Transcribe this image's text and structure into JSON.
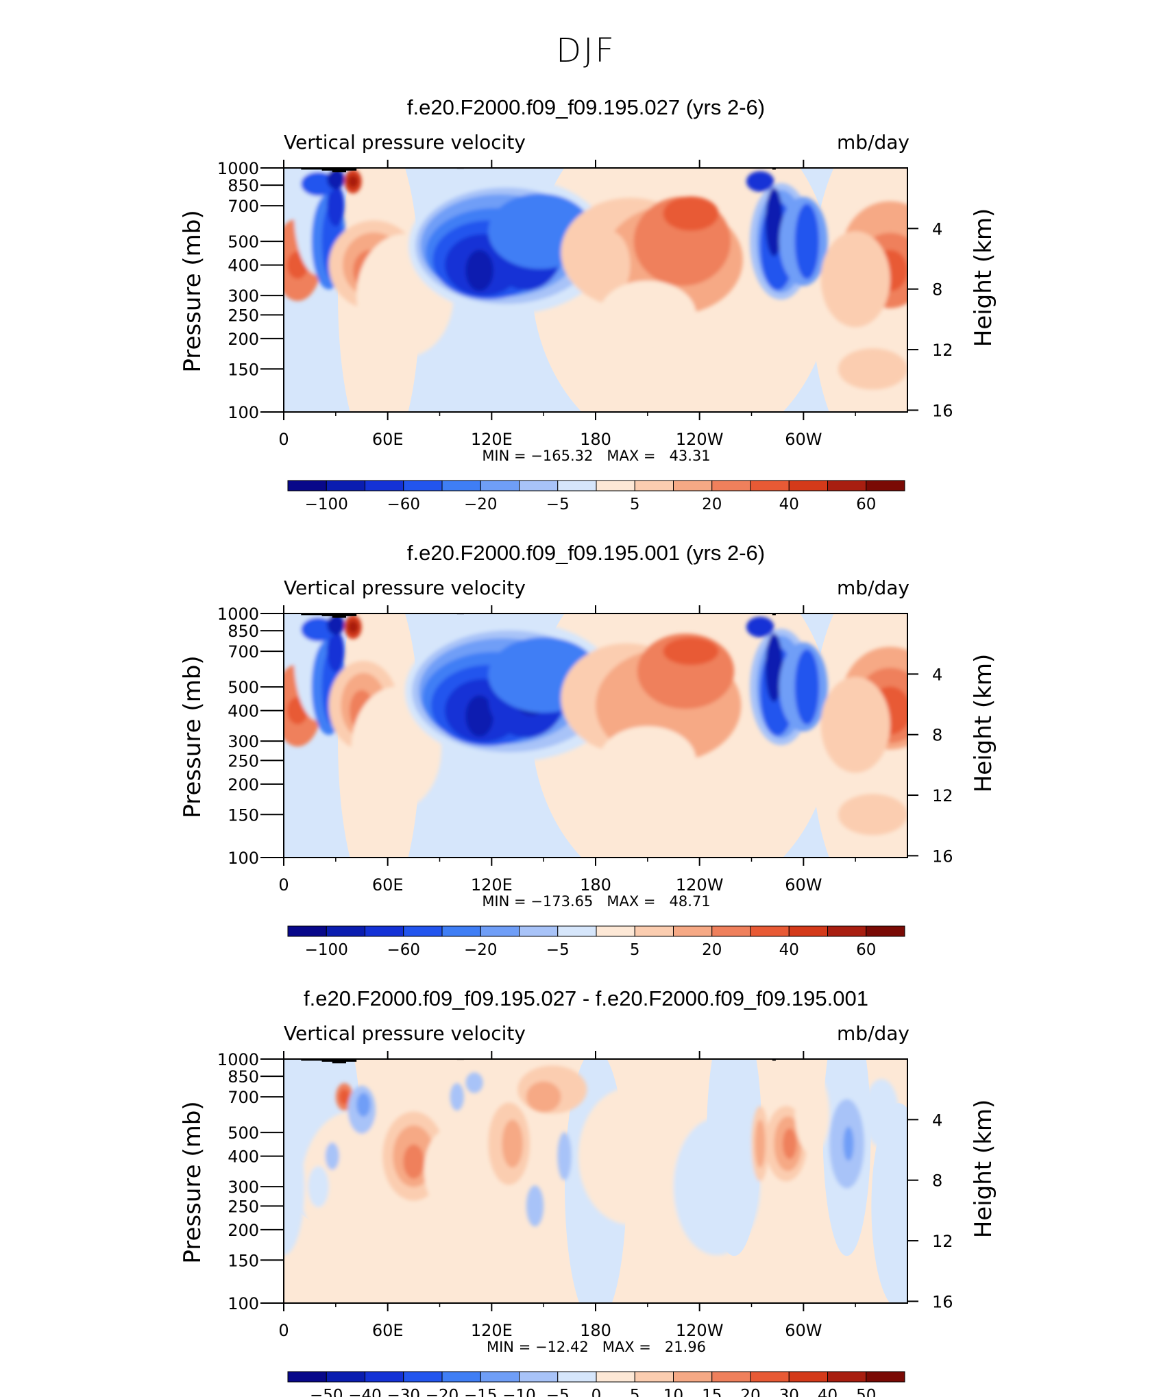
{
  "figure": {
    "title": "DJF"
  },
  "panels": [
    {
      "title": "f.e20.F2000.f09_f09.195.027 (yrs 2-6)",
      "left_string": "Vertical pressure velocity",
      "right_string": "mb/day",
      "minmax": "MIN = −165.32   MAX =   43.31",
      "colorbar_labels": [
        "−100",
        "−60",
        "−20",
        "−5",
        "5",
        "20",
        "40",
        "60"
      ]
    },
    {
      "title": "f.e20.F2000.f09_f09.195.001 (yrs 2-6)",
      "left_string": "Vertical pressure velocity",
      "right_string": "mb/day",
      "minmax": "MIN = −173.65   MAX =   48.71",
      "colorbar_labels": [
        "−100",
        "−60",
        "−20",
        "−5",
        "5",
        "20",
        "40",
        "60"
      ]
    },
    {
      "title": "f.e20.F2000.f09_f09.195.027 - f.e20.F2000.f09_f09.195.001",
      "left_string": "Vertical pressure velocity",
      "right_string": "mb/day",
      "minmax": "MIN = −12.42   MAX =   21.96",
      "colorbar_labels": [
        "−50",
        "−40",
        "−30",
        "−20",
        "−15",
        "−10",
        "−5",
        "0",
        "5",
        "10",
        "15",
        "20",
        "30",
        "40",
        "50"
      ]
    }
  ],
  "axes": {
    "ylabel": "Pressure (mb)",
    "ylabel_right": "Height (km)",
    "pressure_ticks": [
      "100",
      "150",
      "200",
      "250",
      "300",
      "400",
      "500",
      "700",
      "850",
      "1000"
    ],
    "height_ticks": [
      "16",
      "12",
      "8",
      "4"
    ],
    "lon_ticks": [
      "0",
      "60E",
      "120E",
      "180",
      "120W",
      "60W"
    ]
  },
  "colors": {
    "diverging": [
      "#08088a",
      "#0a1db0",
      "#1432d6",
      "#2255ee",
      "#3f7ef5",
      "#6f9ef7",
      "#a8c3f8",
      "#d6e6fb",
      "#fde8d6",
      "#fbcdb0",
      "#f6a985",
      "#ef805c",
      "#e85a35",
      "#d43a1a",
      "#a81e10",
      "#7a0a05"
    ]
  },
  "chart_data": [
    {
      "type": "heatmap",
      "title": "f.e20.F2000.f09_f09.195.027 (yrs 2-6)",
      "variable": "Vertical pressure velocity",
      "units": "mb/day",
      "x": "longitude (0 to 360)",
      "y": "pressure (mb), log scale, 1000 to 100",
      "ylim": [
        1000,
        100
      ],
      "min": -165.32,
      "max": 43.31,
      "contour_levels": [
        -100,
        -80,
        -60,
        -40,
        -20,
        -10,
        -5,
        0,
        5,
        10,
        20,
        30,
        40,
        50,
        60
      ],
      "features": [
        {
          "lon": 8,
          "p": 400,
          "value": 40
        },
        {
          "lon": 28,
          "p": 500,
          "value": -40
        },
        {
          "lon": 50,
          "p": 400,
          "value": 30
        },
        {
          "lon": 40,
          "p": 850,
          "value": 60
        },
        {
          "lon": 113,
          "p": 400,
          "value": -100
        },
        {
          "lon": 140,
          "p": 450,
          "value": -80
        },
        {
          "lon": 195,
          "p": 450,
          "value": 20
        },
        {
          "lon": 235,
          "p": 600,
          "value": 40
        },
        {
          "lon": 285,
          "p": 500,
          "value": -100
        },
        {
          "lon": 303,
          "p": 500,
          "value": -60
        },
        {
          "lon": 348,
          "p": 350,
          "value": 40
        }
      ]
    },
    {
      "type": "heatmap",
      "title": "f.e20.F2000.f09_f09.195.001 (yrs 2-6)",
      "variable": "Vertical pressure velocity",
      "units": "mb/day",
      "x": "longitude (0 to 360)",
      "y": "pressure (mb), log scale, 1000 to 100",
      "ylim": [
        1000,
        100
      ],
      "min": -173.65,
      "max": 48.71,
      "contour_levels": [
        -100,
        -80,
        -60,
        -40,
        -20,
        -10,
        -5,
        0,
        5,
        10,
        20,
        30,
        40,
        50,
        60
      ],
      "features": [
        {
          "lon": 8,
          "p": 400,
          "value": 40
        },
        {
          "lon": 28,
          "p": 500,
          "value": -40
        },
        {
          "lon": 45,
          "p": 400,
          "value": 30
        },
        {
          "lon": 40,
          "p": 850,
          "value": 60
        },
        {
          "lon": 113,
          "p": 400,
          "value": -100
        },
        {
          "lon": 140,
          "p": 450,
          "value": -80
        },
        {
          "lon": 195,
          "p": 450,
          "value": 20
        },
        {
          "lon": 235,
          "p": 650,
          "value": 40
        },
        {
          "lon": 285,
          "p": 500,
          "value": -100
        },
        {
          "lon": 303,
          "p": 500,
          "value": -60
        },
        {
          "lon": 348,
          "p": 400,
          "value": 40
        }
      ]
    },
    {
      "type": "heatmap",
      "title": "f.e20.F2000.f09_f09.195.027 - f.e20.F2000.f09_f09.195.001",
      "variable": "Vertical pressure velocity",
      "units": "mb/day",
      "x": "longitude (0 to 360)",
      "y": "pressure (mb), log scale, 1000 to 100",
      "ylim": [
        1000,
        100
      ],
      "min": -12.42,
      "max": 21.96,
      "contour_levels": [
        -50,
        -40,
        -30,
        -20,
        -15,
        -10,
        -5,
        0,
        5,
        10,
        15,
        20,
        30,
        40,
        50
      ],
      "features": [
        {
          "lon": 75,
          "p": 400,
          "value": 15
        },
        {
          "lon": 35,
          "p": 700,
          "value": 15
        },
        {
          "lon": 130,
          "p": 450,
          "value": 10
        },
        {
          "lon": 155,
          "p": 750,
          "value": 5
        },
        {
          "lon": 290,
          "p": 400,
          "value": 15
        },
        {
          "lon": 273,
          "p": 350,
          "value": 10
        },
        {
          "lon": 325,
          "p": 450,
          "value": -5
        },
        {
          "lon": 45,
          "p": 600,
          "value": -5
        }
      ]
    }
  ]
}
